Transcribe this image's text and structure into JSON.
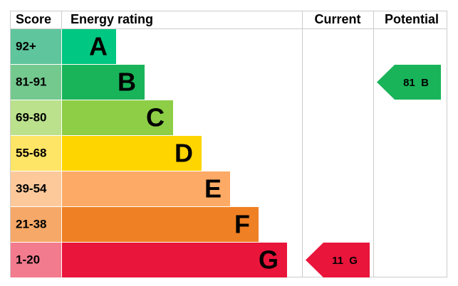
{
  "header": {
    "score": "Score",
    "rating": "Energy rating",
    "current": "Current",
    "potential": "Potential"
  },
  "bands": [
    {
      "score": "92+",
      "letter": "A",
      "color": "#00c781",
      "score_color": "#5fc59c"
    },
    {
      "score": "81-91",
      "letter": "B",
      "color": "#19b459",
      "score_color": "#74c98e"
    },
    {
      "score": "69-80",
      "letter": "C",
      "color": "#8dce46",
      "score_color": "#bbe18c"
    },
    {
      "score": "55-68",
      "letter": "D",
      "color": "#ffd500",
      "score_color": "#ffe566"
    },
    {
      "score": "39-54",
      "letter": "E",
      "color": "#fcaa65",
      "score_color": "#fdc99b"
    },
    {
      "score": "21-38",
      "letter": "F",
      "color": "#ef8023",
      "score_color": "#f5a867"
    },
    {
      "score": "1-20",
      "letter": "G",
      "color": "#e9153b",
      "score_color": "#f27b8e"
    }
  ],
  "current": {
    "value": 11,
    "letter": "G"
  },
  "potential": {
    "value": 81,
    "letter": "B"
  }
}
